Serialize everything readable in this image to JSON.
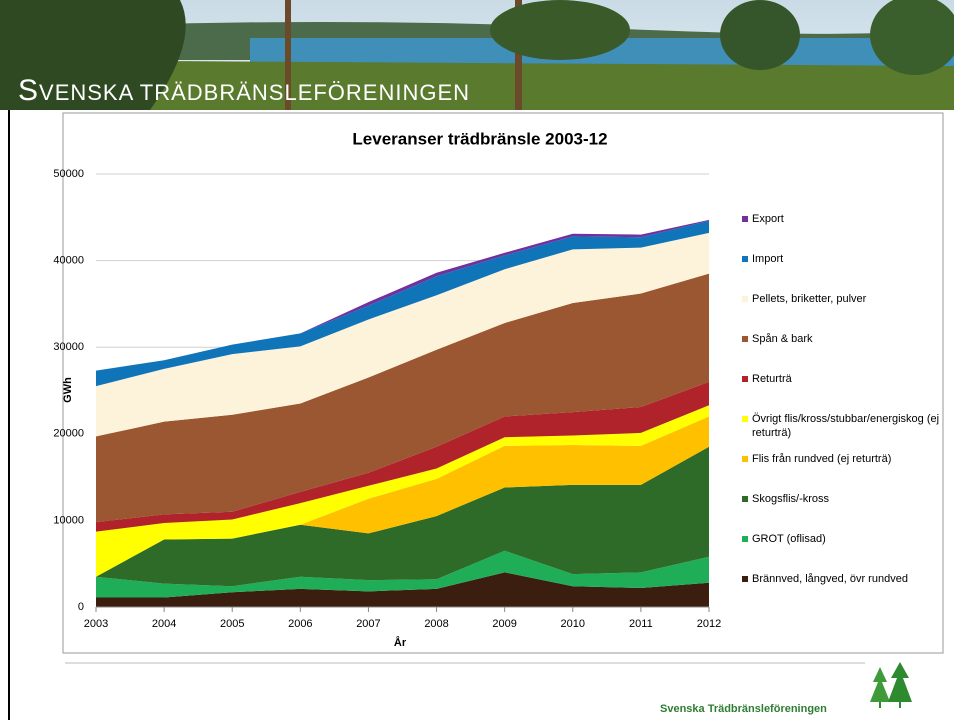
{
  "header": {
    "title": "SVENSKA TRÄDBRÄNSLEFÖRENINGEN"
  },
  "footer": {
    "text": "Svenska Trädbränsleföreningen"
  },
  "chart_data": {
    "type": "stacked-area",
    "title": "Leveranser trädbränsle 2003-12",
    "x_label": "År",
    "y_label": "GWh",
    "x": [
      2003,
      2004,
      2005,
      2006,
      2007,
      2008,
      2009,
      2010,
      2011,
      2012
    ],
    "xlim": [
      2003,
      2012
    ],
    "ylim": [
      0,
      50000
    ],
    "yticks": [
      0,
      10000,
      20000,
      30000,
      40000,
      50000
    ],
    "grid": true,
    "series": [
      {
        "name": "Brännved, långved, övr rundved",
        "color": "#3b1e0f",
        "values": [
          1100,
          1100,
          1700,
          2100,
          1800,
          2100,
          4000,
          2400,
          2200,
          2800
        ]
      },
      {
        "name": "GROT (oflisad)",
        "color": "#1fae57",
        "values": [
          2400,
          1600,
          700,
          1400,
          1300,
          1100,
          2500,
          1400,
          1800,
          3000
        ]
      },
      {
        "name": "Skogsflis/-kross",
        "color": "#2e6a28",
        "values": [
          0,
          5100,
          5500,
          6000,
          5400,
          7300,
          7300,
          10300,
          10100,
          12700
        ]
      },
      {
        "name": "Flis från rundved (ej returträ)",
        "color": "#ffc000",
        "values": [
          0,
          0,
          0,
          0,
          4000,
          4300,
          4800,
          4600,
          4500,
          3500
        ]
      },
      {
        "name": "Övrigt flis/kross/stubbar/energiskog (ej returträ)",
        "color": "#ffff00",
        "values": [
          5200,
          1900,
          2200,
          2500,
          1500,
          1200,
          1000,
          1100,
          1500,
          1300
        ]
      },
      {
        "name": "Returträ",
        "color": "#b0232b",
        "values": [
          1100,
          1000,
          900,
          1300,
          1500,
          2500,
          2400,
          2700,
          3000,
          2700
        ]
      },
      {
        "name": "Spån & bark",
        "color": "#9b5731",
        "values": [
          9900,
          10700,
          11200,
          10200,
          11000,
          11200,
          10800,
          12600,
          13100,
          12500
        ]
      },
      {
        "name": "Pellets, briketter, pulver",
        "color": "#fcf3da",
        "values": [
          5800,
          6100,
          7000,
          6600,
          6700,
          6300,
          6200,
          6200,
          5300,
          4700
        ]
      },
      {
        "name": "Import",
        "color": "#0f74b8",
        "values": [
          1800,
          1000,
          1100,
          1500,
          1600,
          2200,
          1600,
          1500,
          1200,
          1400
        ]
      },
      {
        "name": "Export",
        "color": "#7030a0",
        "values": [
          0,
          0,
          0,
          0,
          400,
          400,
          300,
          300,
          300,
          100
        ]
      }
    ]
  }
}
